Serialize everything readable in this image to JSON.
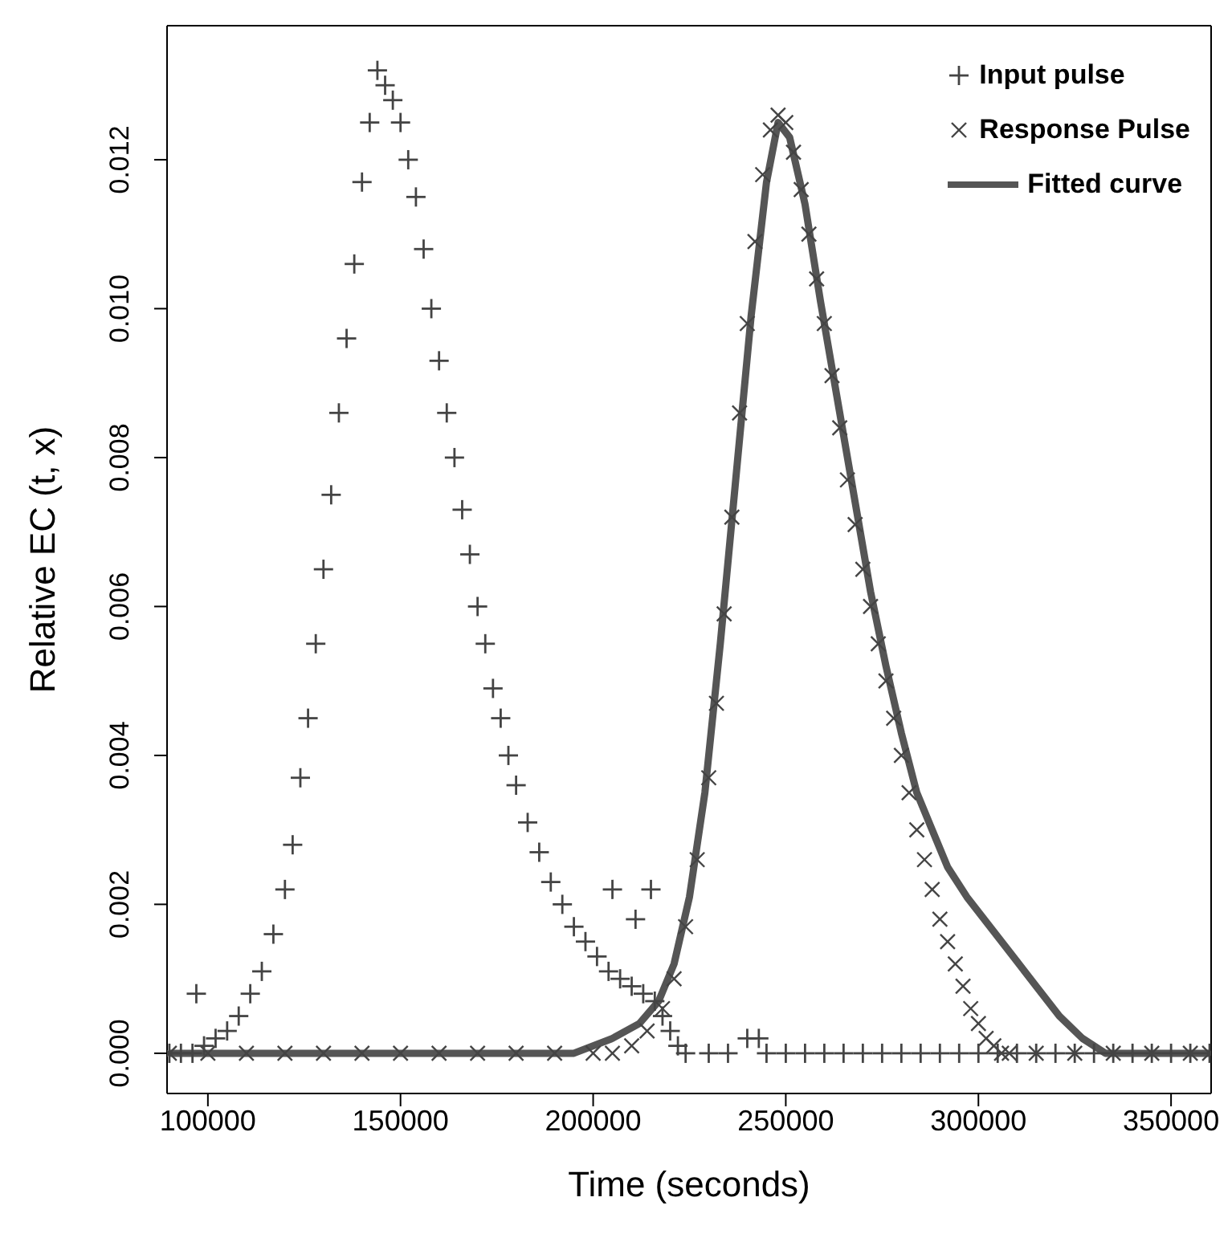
{
  "chart_data": {
    "type": "scatter",
    "xlabel": "Time (seconds)",
    "ylabel": "Relative EC (t, x)",
    "xlim": [
      89400,
      360400
    ],
    "xticks": [
      100000,
      150000,
      200000,
      250000,
      300000,
      350000
    ],
    "ylim": [
      -0.00054,
      0.0138
    ],
    "yticks": [
      {
        "value": 0,
        "label": "0.000"
      },
      {
        "value": 0.002,
        "label": "0.002"
      },
      {
        "value": 0.004,
        "label": "0.004"
      },
      {
        "value": 0.006,
        "label": "0.006"
      },
      {
        "value": 0.008,
        "label": "0.008"
      },
      {
        "value": 0.01,
        "label": "0.010"
      },
      {
        "value": 0.012,
        "label": "0.012"
      }
    ],
    "legend": "top right",
    "series": [
      {
        "name": "Input pulse",
        "marker": "cross",
        "color": "#444444",
        "x": [
          90000,
          93000,
          96000,
          97000,
          99000,
          102000,
          105000,
          108000,
          111000,
          114000,
          117000,
          120000,
          122000,
          124000,
          126000,
          128000,
          130000,
          132000,
          134000,
          136000,
          138000,
          140000,
          142000,
          144000,
          146000,
          148000,
          150000,
          152000,
          154000,
          156000,
          158000,
          160000,
          162000,
          164000,
          166000,
          168000,
          170000,
          172000,
          174000,
          176000,
          178000,
          180000,
          183000,
          186000,
          189000,
          192000,
          195000,
          198000,
          201000,
          204000,
          205000,
          207000,
          210000,
          211000,
          213000,
          215000,
          216000,
          218000,
          220000,
          222000,
          224000,
          230000,
          235000,
          240000,
          243000,
          245000,
          250000,
          255000,
          260000,
          265000,
          270000,
          275000,
          280000,
          285000,
          290000,
          295000,
          300000,
          305000,
          310000,
          315000,
          320000,
          325000,
          330000,
          335000,
          340000,
          345000,
          350000,
          355000,
          360000
        ],
        "values": [
          0,
          0,
          0,
          0.0008,
          0.0001,
          0.0002,
          0.0003,
          0.0005,
          0.0008,
          0.0011,
          0.0016,
          0.0022,
          0.0028,
          0.0037,
          0.0045,
          0.0055,
          0.0065,
          0.0075,
          0.0086,
          0.0096,
          0.0106,
          0.0117,
          0.0125,
          0.0132,
          0.013,
          0.0128,
          0.0125,
          0.012,
          0.0115,
          0.0108,
          0.01,
          0.0093,
          0.0086,
          0.008,
          0.0073,
          0.0067,
          0.006,
          0.0055,
          0.0049,
          0.0045,
          0.004,
          0.0036,
          0.0031,
          0.0027,
          0.0023,
          0.002,
          0.0017,
          0.0015,
          0.0013,
          0.0011,
          0.0022,
          0.001,
          0.0009,
          0.0018,
          0.0008,
          0.0022,
          0.0007,
          0.0005,
          0.0003,
          0.0001,
          0,
          0,
          0,
          0.0002,
          0.0002,
          0,
          0,
          0,
          0,
          0,
          0,
          0,
          0,
          0,
          0,
          0,
          0,
          0,
          0,
          0,
          0,
          0,
          0,
          0,
          0,
          0,
          0,
          0,
          0
        ]
      },
      {
        "name": "Response Pulse",
        "marker": "x",
        "color": "#444444",
        "x": [
          90000,
          100000,
          110000,
          120000,
          130000,
          140000,
          150000,
          160000,
          170000,
          180000,
          190000,
          200000,
          205000,
          210000,
          214000,
          218000,
          221000,
          224000,
          227000,
          230000,
          232000,
          234000,
          236000,
          238000,
          240000,
          242000,
          244000,
          246000,
          248000,
          250000,
          252000,
          254000,
          256000,
          258000,
          260000,
          262000,
          264000,
          266000,
          268000,
          270000,
          272000,
          274000,
          276000,
          278000,
          280000,
          282000,
          284000,
          286000,
          288000,
          290000,
          292000,
          294000,
          296000,
          298000,
          300000,
          302000,
          304000,
          306000,
          308000,
          315000,
          325000,
          335000,
          345000,
          355000,
          360000
        ],
        "values": [
          0,
          0,
          0,
          0,
          0,
          0,
          0,
          0,
          0,
          0,
          0,
          0,
          0,
          0.0001,
          0.0003,
          0.0006,
          0.001,
          0.0017,
          0.0026,
          0.0037,
          0.0047,
          0.0059,
          0.0072,
          0.0086,
          0.0098,
          0.0109,
          0.0118,
          0.0124,
          0.0126,
          0.0125,
          0.0121,
          0.0116,
          0.011,
          0.0104,
          0.0098,
          0.0091,
          0.0084,
          0.0077,
          0.0071,
          0.0065,
          0.006,
          0.0055,
          0.005,
          0.0045,
          0.004,
          0.0035,
          0.003,
          0.0026,
          0.0022,
          0.0018,
          0.0015,
          0.0012,
          0.0009,
          0.0006,
          0.0004,
          0.0002,
          0.0001,
          0,
          0,
          0,
          0,
          0,
          0,
          0,
          0
        ]
      },
      {
        "name": "Fitted curve",
        "type": "line",
        "color": "#555555",
        "x": [
          90000,
          195000,
          205000,
          212000,
          217000,
          221000,
          225000,
          229000,
          233000,
          237000,
          241000,
          245000,
          248000,
          251000,
          255000,
          259000,
          264000,
          268000,
          272000,
          276000,
          280000,
          284000,
          288000,
          292000,
          297000,
          303000,
          309000,
          315000,
          321000,
          327000,
          333000,
          345000,
          360000
        ],
        "values": [
          0,
          0,
          0.0002,
          0.0004,
          0.0007,
          0.0012,
          0.0021,
          0.0035,
          0.0055,
          0.0077,
          0.0099,
          0.0117,
          0.0125,
          0.0123,
          0.0114,
          0.0101,
          0.0086,
          0.0074,
          0.0062,
          0.0052,
          0.0043,
          0.0035,
          0.003,
          0.0025,
          0.0021,
          0.0017,
          0.0013,
          0.0009,
          0.0005,
          0.0002,
          0,
          0,
          0
        ]
      }
    ]
  }
}
